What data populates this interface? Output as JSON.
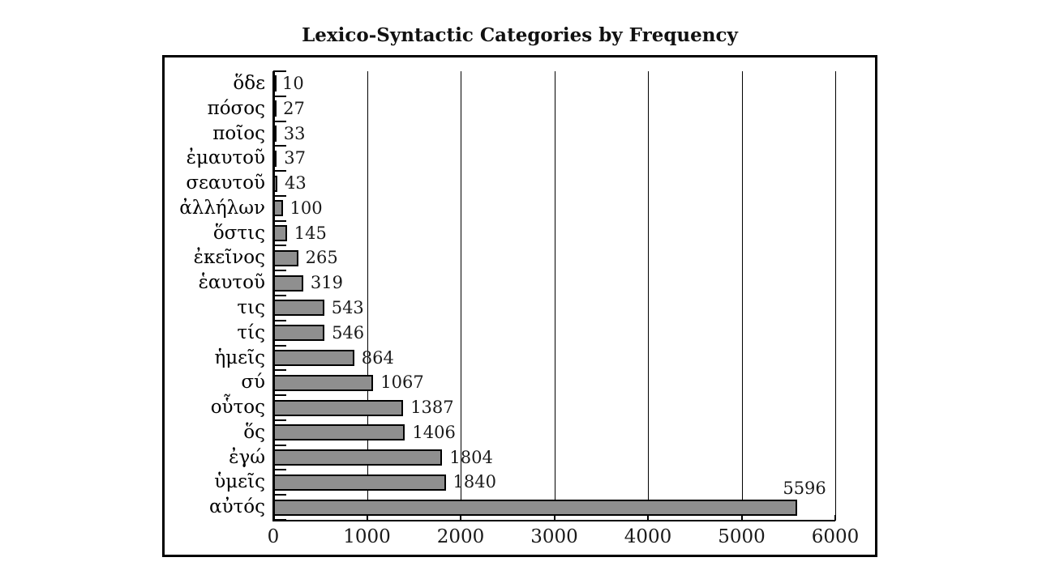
{
  "title": "Lexico-Syntactic Categories by Frequency",
  "colors": {
    "bar_fill": "#8f8f8f",
    "bar_border": "#000000",
    "axis": "#000000",
    "background": "#ffffff",
    "text": "#1a1a1a"
  },
  "chart_data": {
    "type": "bar",
    "orientation": "horizontal",
    "title": "Lexico-Syntactic Categories by Frequency",
    "categories": [
      "ὅδε",
      "πόσος",
      "ποῖος",
      "ἐμαυτοῦ",
      "σεαυτοῦ",
      "ἀλλήλων",
      "ὅστις",
      "ἐκεῖνος",
      "ἑαυτοῦ",
      "τις",
      "τίς",
      "ἡμεῖς",
      "σύ",
      "οὗτος",
      "ὅς",
      "ἐγώ",
      "ὑμεῖς",
      "αὐτός"
    ],
    "values": [
      10,
      27,
      33,
      37,
      43,
      100,
      145,
      265,
      319,
      543,
      546,
      864,
      1067,
      1387,
      1406,
      1804,
      1840,
      5596
    ],
    "data_labels": [
      "10",
      "27",
      "33",
      "37",
      "43",
      "100",
      "145",
      "265",
      "319",
      "543",
      "546",
      "864",
      "1067",
      "1387",
      "1406",
      "1804",
      "1840",
      "5596"
    ],
    "xlabel": "",
    "ylabel": "",
    "xlim": [
      0,
      6000
    ],
    "x_ticks": [
      "0",
      "1000",
      "2000",
      "3000",
      "4000",
      "5000",
      "6000"
    ],
    "x_tick_values": [
      0,
      1000,
      2000,
      3000,
      4000,
      5000,
      6000
    ],
    "grid": "vertical",
    "legend": false
  }
}
